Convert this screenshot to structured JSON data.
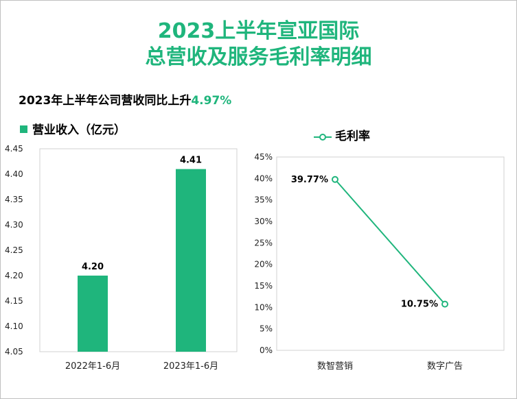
{
  "title_line1": "2023上半年宣亚国际",
  "title_line2": "总营收及服务毛利率明细",
  "subtitle_prefix": "2023年上半年公司营收同比上升",
  "subtitle_highlight": "4.97%",
  "colors": {
    "accent": "#1fb57c"
  },
  "chart_data": [
    {
      "type": "bar",
      "legend": "营业收入（亿元）",
      "categories": [
        "2022年1-6月",
        "2023年1-6月"
      ],
      "values": [
        4.2,
        4.41
      ],
      "value_labels": [
        "4.20",
        "4.41"
      ],
      "ylim": [
        4.05,
        4.45
      ],
      "yticks": [
        "4.05",
        "4.10",
        "4.15",
        "4.20",
        "4.25",
        "4.30",
        "4.35",
        "4.40",
        "4.45"
      ],
      "color": "#1fb57c"
    },
    {
      "type": "line",
      "legend": "毛利率",
      "categories": [
        "数智营销",
        "数字广告"
      ],
      "values": [
        39.77,
        10.75
      ],
      "value_labels": [
        "39.77%",
        "10.75%"
      ],
      "ylim": [
        0,
        45
      ],
      "yticks": [
        "0%",
        "5%",
        "10%",
        "15%",
        "20%",
        "25%",
        "30%",
        "35%",
        "40%",
        "45%"
      ],
      "color": "#1fb57c"
    }
  ]
}
